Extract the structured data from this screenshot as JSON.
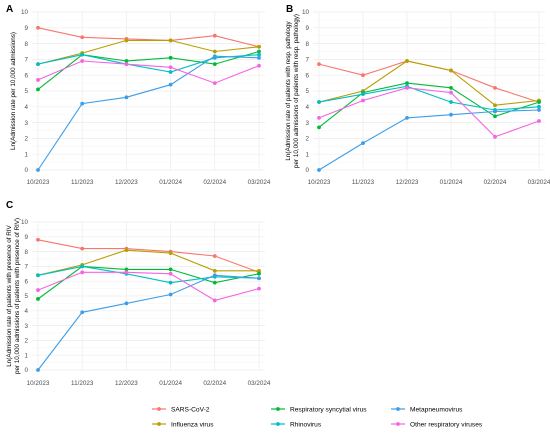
{
  "chart_data": [
    {
      "type": "line",
      "panel_label": "A",
      "ylabel": "Ln(Admission rate per 10,000 admissions)",
      "xlabel": "",
      "categories": [
        "10/2023",
        "11/2023",
        "12/2023",
        "01/2024",
        "02/2024",
        "03/2024"
      ],
      "ylim": [
        0,
        10
      ],
      "yticks": [
        "0",
        "1",
        "2",
        "3",
        "4",
        "5",
        "6",
        "7",
        "8",
        "9",
        "10"
      ],
      "grid": true,
      "series": [
        {
          "name": "SARS-CoV-2",
          "color": "#F8766D",
          "values": [
            9.0,
            8.4,
            8.3,
            8.2,
            8.5,
            7.8
          ]
        },
        {
          "name": "Influenza virus",
          "color": "#B79F00",
          "values": [
            6.7,
            7.4,
            8.2,
            8.2,
            7.5,
            7.8
          ]
        },
        {
          "name": "Respiratory syncytial virus",
          "color": "#00BA38",
          "values": [
            5.1,
            7.3,
            6.9,
            7.1,
            6.7,
            7.5
          ]
        },
        {
          "name": "Rhinovirus",
          "color": "#00BFC4",
          "values": [
            6.7,
            7.3,
            6.7,
            6.2,
            7.1,
            7.3
          ]
        },
        {
          "name": "Metapneumovirus",
          "color": "#3D9EE8",
          "values": [
            0.0,
            4.2,
            4.6,
            5.4,
            7.2,
            7.1
          ]
        },
        {
          "name": "Other respiratory viruses",
          "color": "#F564E3",
          "values": [
            5.7,
            6.9,
            6.7,
            6.5,
            5.5,
            6.6
          ]
        }
      ]
    },
    {
      "type": "line",
      "panel_label": "B",
      "ylabel": "Ln(Admission rate of patients with resp. pathology per 10,000 admissions of patients with resp. pathology)",
      "xlabel": "",
      "categories": [
        "10/2023",
        "11/2023",
        "12/2023",
        "01/2024",
        "02/2024",
        "03/2024"
      ],
      "ylim": [
        0,
        10
      ],
      "yticks": [
        "0",
        "1",
        "2",
        "3",
        "4",
        "5",
        "6",
        "7",
        "8",
        "9",
        "10"
      ],
      "grid": true,
      "series": [
        {
          "name": "SARS-CoV-2",
          "color": "#F8766D",
          "values": [
            6.7,
            6.0,
            6.9,
            6.3,
            5.2,
            4.3
          ]
        },
        {
          "name": "Influenza virus",
          "color": "#B79F00",
          "values": [
            4.3,
            5.0,
            6.9,
            6.3,
            4.1,
            4.4
          ]
        },
        {
          "name": "Respiratory syncytial virus",
          "color": "#00BA38",
          "values": [
            2.7,
            4.9,
            5.5,
            5.2,
            3.4,
            4.3
          ]
        },
        {
          "name": "Rhinovirus",
          "color": "#00BFC4",
          "values": [
            4.3,
            4.8,
            5.3,
            4.3,
            3.8,
            4.0
          ]
        },
        {
          "name": "Metapneumovirus",
          "color": "#3D9EE8",
          "values": [
            0.0,
            1.7,
            3.3,
            3.5,
            3.7,
            3.8
          ]
        },
        {
          "name": "Other respiratory viruses",
          "color": "#F564E3",
          "values": [
            3.3,
            4.4,
            5.2,
            4.9,
            2.1,
            3.1
          ]
        }
      ]
    },
    {
      "type": "line",
      "panel_label": "C",
      "ylabel": "Ln(Admission rate of patients with presence of RIV per 10,000 admissions of patients with presence of RIV)",
      "xlabel": "",
      "categories": [
        "10/2023",
        "11/2023",
        "12/2023",
        "01/2024",
        "02/2024",
        "03/2024"
      ],
      "ylim": [
        0,
        10
      ],
      "yticks": [
        "0",
        "1",
        "2",
        "3",
        "4",
        "5",
        "6",
        "7",
        "8",
        "9",
        "10"
      ],
      "grid": true,
      "series": [
        {
          "name": "SARS-CoV-2",
          "color": "#F8766D",
          "values": [
            8.8,
            8.2,
            8.2,
            8.0,
            7.7,
            6.6
          ]
        },
        {
          "name": "Influenza virus",
          "color": "#B79F00",
          "values": [
            6.4,
            7.1,
            8.1,
            7.9,
            6.7,
            6.7
          ]
        },
        {
          "name": "Respiratory syncytial virus",
          "color": "#00BA38",
          "values": [
            4.8,
            7.0,
            6.8,
            6.8,
            5.9,
            6.5
          ]
        },
        {
          "name": "Rhinovirus",
          "color": "#00BFC4",
          "values": [
            6.4,
            7.0,
            6.5,
            5.9,
            6.3,
            6.2
          ]
        },
        {
          "name": "Metapneumovirus",
          "color": "#3D9EE8",
          "values": [
            0.0,
            3.9,
            4.5,
            5.1,
            6.4,
            6.2
          ]
        },
        {
          "name": "Other respiratory viruses",
          "color": "#F564E3",
          "values": [
            5.4,
            6.6,
            6.6,
            6.5,
            4.7,
            5.5
          ]
        }
      ]
    }
  ],
  "legend": {
    "placement": "bottom",
    "items": [
      {
        "name": "SARS-CoV-2",
        "color": "#F8766D"
      },
      {
        "name": "Respiratory syncytial virus",
        "color": "#00BA38"
      },
      {
        "name": "Metapneumovirus",
        "color": "#3D9EE8"
      },
      {
        "name": "Influenza virus",
        "color": "#B79F00"
      },
      {
        "name": "Rhinovirus",
        "color": "#00BFC4"
      },
      {
        "name": "Other respiratory viruses",
        "color": "#F564E3"
      }
    ]
  }
}
